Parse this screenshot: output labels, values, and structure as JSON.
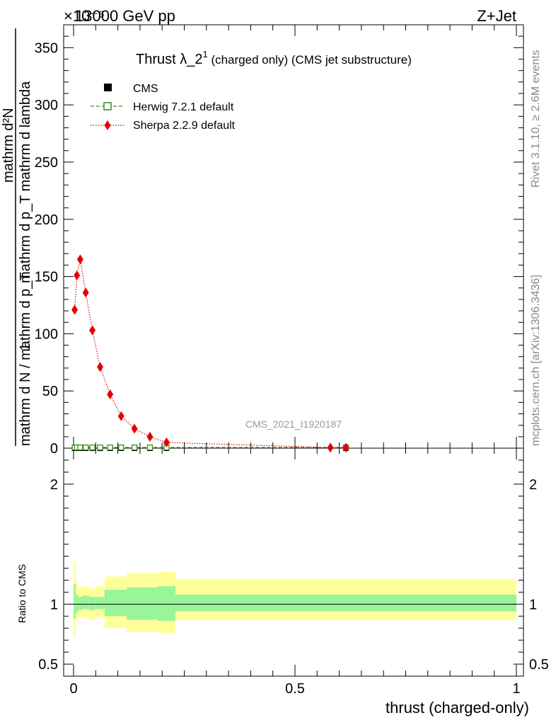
{
  "header": {
    "left": "13000 GeV pp",
    "right": "Z+Jet",
    "exponent_label": "×10⁻⁶"
  },
  "title": {
    "main": "Thrust λ_2",
    "sup": "1",
    "suffix": " (charged only) (CMS jet substructure)"
  },
  "side_labels": {
    "rivet": "Rivet 3.1.10, ≥ 2.6M events",
    "mcplots": "mcplots.cern.ch [arXiv:1306.3436]"
  },
  "watermark": "CMS_2021_I1920187",
  "ylabel_main": {
    "numer": "mathrm d²N",
    "denom": "mathrm d p_T mathrm d lambda",
    "prefix": "1",
    "prefix_den": "mathrm d N / mathrm d p_T",
    "sub_T": "T"
  },
  "ylabel_ratio": "Ratio to CMS",
  "xlabel": "thrust (charged-only)",
  "legend": [
    {
      "name": "CMS",
      "color": "#000000",
      "style": "marker-square"
    },
    {
      "name": "Herwig 7.2.1 default",
      "color": "#3a8c1a",
      "style": "dash-open-square"
    },
    {
      "name": "Sherpa 2.2.9 default",
      "color": "#e00000",
      "style": "dot-diamond"
    }
  ],
  "chart_data": {
    "type": "line",
    "xlim": [
      0,
      1
    ],
    "ylim": [
      0,
      370
    ],
    "y_ticks": [
      0,
      50,
      100,
      150,
      200,
      250,
      300,
      350
    ],
    "x_ticks": [
      0,
      0.5,
      1
    ],
    "x_tick_labels": [
      "0",
      "0.5",
      "1"
    ],
    "series": [
      {
        "name": "Sherpa 2.2.9 default",
        "x": [
          0.0025,
          0.0075,
          0.015,
          0.0275,
          0.0425,
          0.06,
          0.0825,
          0.1075,
          0.1375,
          0.1725,
          0.21,
          0.58,
          0.615
        ],
        "values": [
          121,
          151,
          165,
          136,
          103,
          71,
          47,
          28,
          17,
          10,
          5,
          0.5,
          0.5
        ]
      },
      {
        "name": "CMS",
        "x": [
          0.0025,
          0.0075,
          0.015,
          0.0275,
          0.0425,
          0.06,
          0.0825,
          0.1075,
          0.1375,
          0.1725,
          0.21,
          0.615
        ],
        "values": [
          0,
          0,
          0,
          0,
          0,
          0,
          0,
          0,
          0,
          0,
          0,
          0
        ]
      },
      {
        "name": "Herwig 7.2.1 default",
        "x": [
          0.0025,
          0.0075,
          0.015,
          0.0275,
          0.0425,
          0.06,
          0.0825,
          0.1075,
          0.1375,
          0.1725,
          0.21,
          0.615
        ],
        "values": [
          0,
          0,
          0,
          0,
          0,
          0,
          0,
          0,
          0,
          0,
          0,
          0
        ]
      }
    ],
    "ratio": {
      "ylim": [
        0.4,
        2.3
      ],
      "y_ticks": [
        0.5,
        1,
        2
      ],
      "y_tick_labels": [
        "0.5",
        "1",
        "2"
      ],
      "bins": [
        0,
        0.005,
        0.01,
        0.02,
        0.035,
        0.05,
        0.07,
        0.095,
        0.12,
        0.155,
        0.19,
        0.23,
        1.0
      ],
      "inner_lo": [
        0.88,
        0.93,
        0.95,
        0.96,
        0.95,
        0.96,
        0.9,
        0.9,
        0.87,
        0.87,
        0.86,
        0.94
      ],
      "inner_hi": [
        1.17,
        1.08,
        1.06,
        1.07,
        1.06,
        1.06,
        1.12,
        1.12,
        1.14,
        1.14,
        1.15,
        1.08
      ],
      "outer_lo": [
        0.74,
        0.86,
        0.89,
        0.89,
        0.87,
        0.89,
        0.8,
        0.8,
        0.77,
        0.77,
        0.76,
        0.87
      ],
      "outer_hi": [
        1.35,
        1.18,
        1.14,
        1.15,
        1.13,
        1.15,
        1.23,
        1.23,
        1.26,
        1.26,
        1.27,
        1.21
      ]
    },
    "colors": {
      "inner_band": "#99f599",
      "outer_band": "#ffff99",
      "sherpa": "#e00000",
      "herwig": "#3a8c1a",
      "cms": "#000000"
    }
  }
}
